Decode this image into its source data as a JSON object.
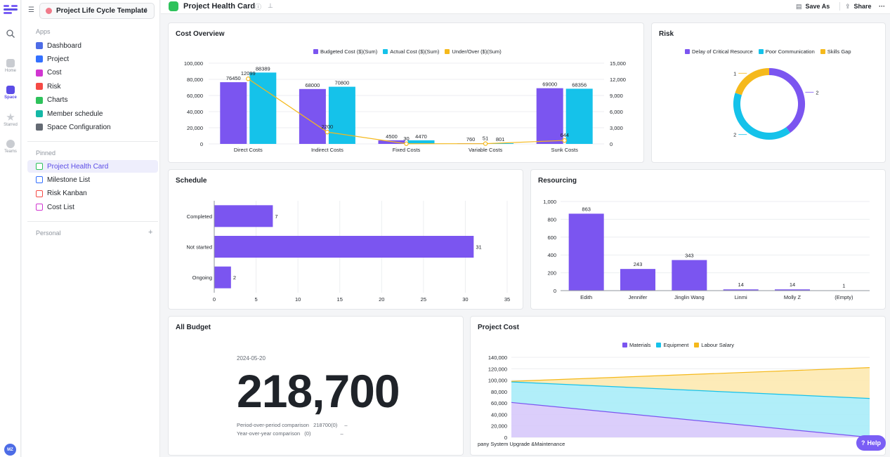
{
  "rail": {
    "items": [
      {
        "label": "Home",
        "icon": "home-icon"
      },
      {
        "label": "Space",
        "icon": "space-icon"
      },
      {
        "label": "Starred",
        "icon": "star-icon"
      },
      {
        "label": "Teams",
        "icon": "teams-icon"
      }
    ],
    "avatar": "MZ"
  },
  "sidebar": {
    "space_name": "Project Life Cycle Template",
    "apps_label": "Apps",
    "apps": [
      {
        "label": "Dashboard",
        "color": "#4d6ce6"
      },
      {
        "label": "Project",
        "color": "#3370ff"
      },
      {
        "label": "Cost",
        "color": "#d136d1"
      },
      {
        "label": "Risk",
        "color": "#f54a45"
      },
      {
        "label": "Charts",
        "color": "#2ec25b"
      },
      {
        "label": "Member schedule",
        "color": "#14b8a6"
      },
      {
        "label": "Space Configuration",
        "color": "#646a73"
      }
    ],
    "pinned_label": "Pinned",
    "pinned": [
      {
        "label": "Project Health Card",
        "color": "#2ec25b"
      },
      {
        "label": "Milestone List",
        "color": "#3370ff"
      },
      {
        "label": "Risk Kanban",
        "color": "#f54a45"
      },
      {
        "label": "Cost List",
        "color": "#d136d1"
      }
    ],
    "personal_label": "Personal"
  },
  "topbar": {
    "title": "Project Health Card",
    "save_as": "Save As",
    "share": "Share",
    "more": "···"
  },
  "cards": {
    "cost_overview": "Cost Overview",
    "risk": "Risk",
    "schedule": "Schedule",
    "resourcing": "Resourcing",
    "all_budget": "All Budget",
    "project_cost": "Project Cost"
  },
  "kpi": {
    "date": "2024-05-20",
    "value": "218,700",
    "pop_label": "Period-over-period comparison",
    "pop_value": "218700(0)",
    "pop_delta": "–",
    "yoy_label": "Year-over-year comparison",
    "yoy_value": "(0)",
    "yoy_delta": "–"
  },
  "help": "Help",
  "chart_data": [
    {
      "type": "bar",
      "title": "Cost Overview",
      "categories": [
        "Direct Costs",
        "Indirect Costs",
        "Fixed Costs",
        "Variable Costs",
        "Sunk Costs"
      ],
      "series": [
        {
          "name": "Budgeted Cost ($)(Sum)",
          "values": [
            76450,
            68000,
            4500,
            760,
            69000
          ],
          "color": "#7b55f0",
          "axis": "left"
        },
        {
          "name": "Actual Cost ($)(Sum)",
          "values": [
            88389,
            70800,
            4470,
            801,
            68356
          ],
          "color": "#15c2ea",
          "axis": "left"
        },
        {
          "name": "Under/Over ($)(Sum)",
          "values": [
            12099,
            2200,
            30,
            51,
            644
          ],
          "color": "#f5b91c",
          "axis": "right",
          "type": "line"
        }
      ],
      "left_ticks": [
        "0",
        "20,000",
        "40,000",
        "60,000",
        "80,000",
        "100,000"
      ],
      "left_ylim": [
        0,
        100000
      ],
      "right_ticks": [
        "0",
        "3,000",
        "6,000",
        "9,000",
        "12,000",
        "15,000"
      ],
      "right_ylim": [
        0,
        15000
      ],
      "legend": "top-center"
    },
    {
      "type": "pie",
      "title": "Risk",
      "donut": true,
      "categories": [
        "Delay of Critical Resource",
        "Poor Communication",
        "Skills Gap"
      ],
      "values": [
        2,
        2,
        1
      ],
      "colors": [
        "#7b55f0",
        "#15c2ea",
        "#f5b91c"
      ],
      "legend": "top-center"
    },
    {
      "type": "bar",
      "orientation": "horizontal",
      "title": "Schedule",
      "categories": [
        "Completed",
        "Not started",
        "Ongoing"
      ],
      "values": [
        7,
        31,
        2
      ],
      "xlim": [
        0,
        35
      ],
      "ticks": [
        "0",
        "5",
        "10",
        "15",
        "20",
        "25",
        "30",
        "35"
      ],
      "color": "#7b55f0"
    },
    {
      "type": "bar",
      "title": "Resourcing",
      "categories": [
        "Edith",
        "Jennifer",
        "Jinglin Wang",
        "Linmi",
        "Molly Z",
        "(Empty)"
      ],
      "values": [
        863,
        243,
        343,
        14,
        14,
        1
      ],
      "ylim": [
        0,
        1000
      ],
      "ticks": [
        "0",
        "200",
        "400",
        "600",
        "800",
        "1,000"
      ],
      "color": "#7b55f0"
    },
    {
      "type": "area",
      "title": "Project Cost",
      "x_label": "pany System Upgrade &Maintenance",
      "series": [
        {
          "name": "Materials",
          "start": 61000,
          "end": 0,
          "color": "#7b55f0"
        },
        {
          "name": "Equipment",
          "start": 97000,
          "end": 68000,
          "color": "#15c2ea"
        },
        {
          "name": "Labour Salary",
          "start": 98000,
          "end": 122000,
          "color": "#f5b91c"
        }
      ],
      "ylim": [
        0,
        140000
      ],
      "ticks": [
        "0",
        "20,000",
        "40,000",
        "60,000",
        "80,000",
        "100,000",
        "120,000",
        "140,000"
      ],
      "legend": "top-center"
    }
  ]
}
